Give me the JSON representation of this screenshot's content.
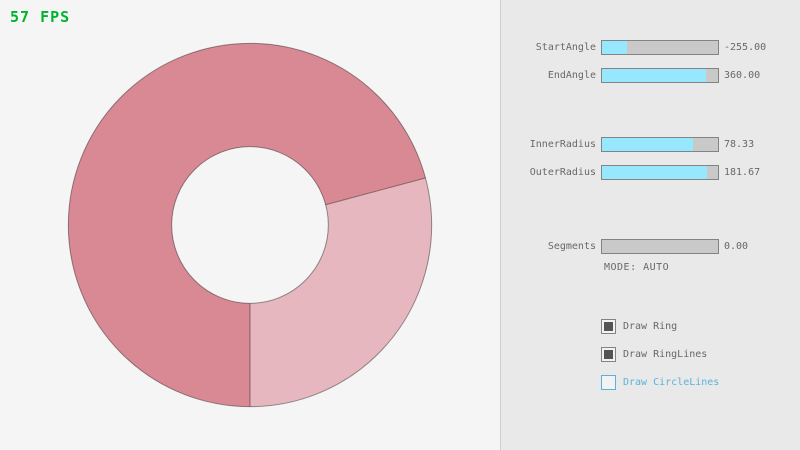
{
  "window": {
    "fps_label": "57 FPS",
    "fps_color": "#00b32e"
  },
  "ring": {
    "colors": {
      "overlap": "#d98994",
      "single": "#e6b7be",
      "outline": "rgba(0,0,0,0.4)"
    }
  },
  "panel": {
    "sliders": [
      {
        "label": "StartAngle",
        "value": "-255.00",
        "fill_pct": 21.7
      },
      {
        "label": "EndAngle",
        "value": "360.00",
        "fill_pct": 90.0
      },
      {
        "label": "InnerRadius",
        "value": "78.33",
        "fill_pct": 78.3
      },
      {
        "label": "OuterRadius",
        "value": "181.67",
        "fill_pct": 90.8
      },
      {
        "label": "Segments",
        "value": "0.00",
        "fill_pct": 0
      }
    ],
    "mode_label": "MODE: AUTO",
    "checkboxes": [
      {
        "label": "Draw Ring",
        "checked": true
      },
      {
        "label": "Draw RingLines",
        "checked": true
      },
      {
        "label": "Draw CircleLines",
        "checked": false
      }
    ],
    "colors": {
      "slider_fill": "#97e8ff",
      "slider_track": "#c9c9c9",
      "control_border": "#838383",
      "text": "#686868",
      "focus_blue": "#5bb2d9",
      "check_mark": "#545454"
    }
  }
}
